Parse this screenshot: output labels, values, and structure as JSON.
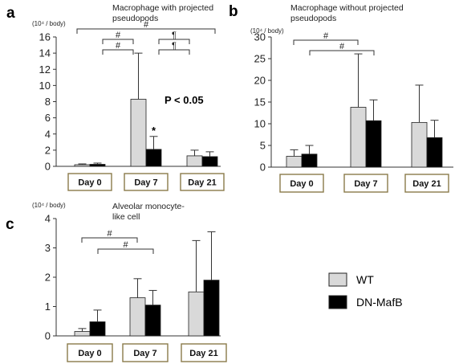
{
  "legend": {
    "items": [
      {
        "label": "WT",
        "color": "#d9d9d9"
      },
      {
        "label": "DN-MafB",
        "color": "#000000"
      }
    ]
  },
  "colors": {
    "wt": "#d9d9d9",
    "dn": "#000000",
    "box_border": "#8a7a4a"
  },
  "chart_data": [
    {
      "panel": "a",
      "type": "bar",
      "title": "Macrophage with projected pseudopods",
      "ylabel": "(10⁴ / body)",
      "categories": [
        "Day 0",
        "Day 7",
        "Day 21"
      ],
      "ylim": [
        0,
        16
      ],
      "yticks": [
        0,
        2,
        4,
        6,
        8,
        10,
        12,
        14,
        16
      ],
      "series": [
        {
          "name": "WT",
          "values": [
            0.2,
            8.3,
            1.3
          ],
          "errors": [
            0.1,
            5.7,
            0.7
          ]
        },
        {
          "name": "DN-MafB",
          "values": [
            0.25,
            2.1,
            1.2
          ],
          "errors": [
            0.15,
            1.6,
            0.6
          ]
        }
      ],
      "annotations": [
        {
          "text": "P < 0.05"
        },
        {
          "text": "*"
        }
      ],
      "brackets": [
        {
          "symbol": "#",
          "from": "Day 0",
          "to": "Day 21",
          "level": 0
        },
        {
          "symbol": "#",
          "from": "Day 0",
          "to": "Day 7",
          "level": 1
        },
        {
          "symbol": "¶",
          "from": "Day 7",
          "to": "Day 21",
          "level": 1
        },
        {
          "symbol": "#",
          "from": "Day 0",
          "to": "Day 7",
          "level": 2
        },
        {
          "symbol": "¶",
          "from": "Day 7",
          "to": "Day 21",
          "level": 2
        }
      ]
    },
    {
      "panel": "b",
      "type": "bar",
      "title": "Macrophage without projected pseudopods",
      "ylabel": "(10⁴ / body)",
      "categories": [
        "Day 0",
        "Day 7",
        "Day 21"
      ],
      "ylim": [
        0,
        30
      ],
      "yticks": [
        0,
        5,
        10,
        15,
        20,
        25,
        30
      ],
      "series": [
        {
          "name": "WT",
          "values": [
            2.5,
            13.8,
            10.3
          ],
          "errors": [
            1.5,
            12.3,
            8.6
          ]
        },
        {
          "name": "DN-MafB",
          "values": [
            3.0,
            10.7,
            6.8
          ],
          "errors": [
            2.0,
            4.8,
            4.0
          ]
        }
      ],
      "annotations": [],
      "brackets": [
        {
          "symbol": "#",
          "from": "Day 0",
          "to": "Day 7",
          "level": 0
        },
        {
          "symbol": "#",
          "from": "Day 0",
          "to": "Day 7",
          "level": 1
        }
      ]
    },
    {
      "panel": "c",
      "type": "bar",
      "title": "Alveolar monocyte-like cell",
      "ylabel": "(10⁴ / body)",
      "categories": [
        "Day 0",
        "Day 7",
        "Day 21"
      ],
      "ylim": [
        0,
        4
      ],
      "yticks": [
        0,
        1,
        2,
        3,
        4
      ],
      "series": [
        {
          "name": "WT",
          "values": [
            0.15,
            1.3,
            1.5
          ],
          "errors": [
            0.1,
            0.65,
            1.75
          ]
        },
        {
          "name": "DN-MafB",
          "values": [
            0.48,
            1.05,
            1.9
          ],
          "errors": [
            0.4,
            0.5,
            1.65
          ]
        }
      ],
      "annotations": [],
      "brackets": [
        {
          "symbol": "#",
          "from": "Day 0",
          "to": "Day 7",
          "level": 0
        },
        {
          "symbol": "#",
          "from": "Day 0",
          "to": "Day 7",
          "level": 1
        }
      ]
    }
  ]
}
